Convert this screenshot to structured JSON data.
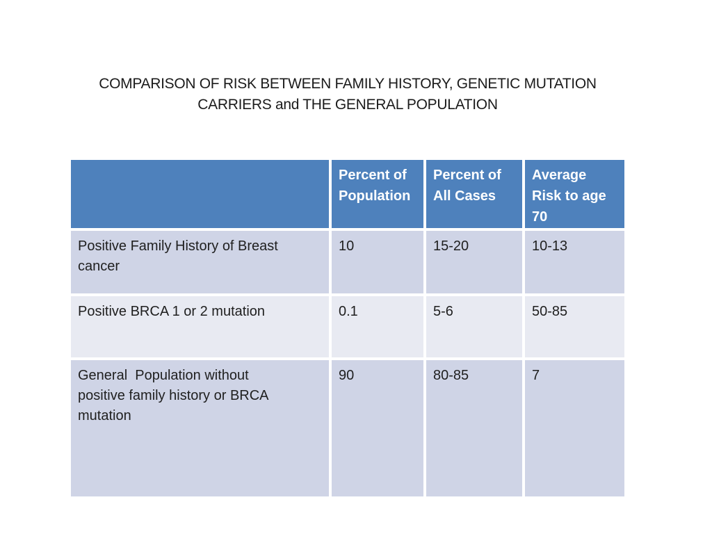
{
  "slide": {
    "title": "COMPARISON OF RISK BETWEEN FAMILY HISTORY, GENETIC MUTATION\nCARRIERS and THE GENERAL POPULATION"
  },
  "table": {
    "headers": [
      "",
      "Percent of Population",
      "Percent of All Cases",
      "Average Risk to age 70"
    ],
    "rows": [
      {
        "cells": [
          "Positive Family History of Breast\ncancer",
          "10",
          "15-20",
          "10-13"
        ]
      },
      {
        "cells": [
          "Positive BRCA 1 or 2 mutation",
          "0.1",
          "5-6",
          "50-85"
        ]
      },
      {
        "cells": [
          "General  Population without\npositive family history or BRCA\nmutation",
          "90",
          "80-85",
          "7"
        ]
      }
    ]
  },
  "colors": {
    "header_bg": "#4e81bc",
    "header_text": "#ffffff",
    "band_dark": "#cfd4e6",
    "band_light": "#e8eaf2",
    "body_text": "#1f1f1f"
  }
}
